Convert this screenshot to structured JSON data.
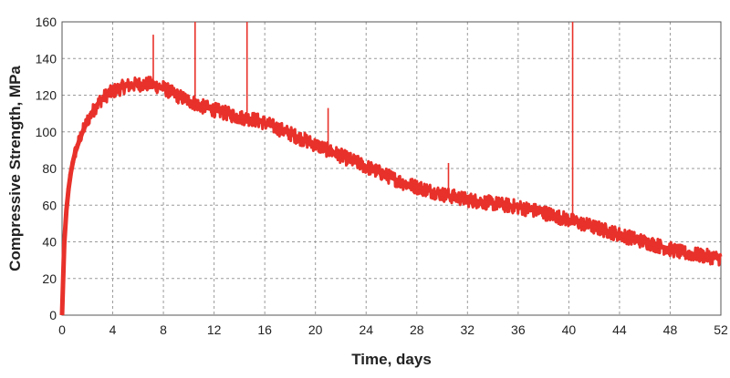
{
  "chart_data": {
    "type": "line",
    "title": "",
    "xlabel": "Time, days",
    "ylabel": "Compressive Strength, MPa",
    "xlim": [
      0,
      52
    ],
    "ylim": [
      0,
      160
    ],
    "x_ticks": [
      0,
      4,
      8,
      12,
      16,
      20,
      24,
      28,
      32,
      36,
      40,
      44,
      48,
      52
    ],
    "y_ticks": [
      0,
      20,
      40,
      60,
      80,
      100,
      120,
      140,
      160
    ],
    "grid": true,
    "grid_style": "dashed",
    "legend": "none",
    "series": [
      {
        "color": "#e8312a",
        "x": [
          0,
          0.2,
          0.4,
          0.6,
          0.8,
          1,
          1.5,
          2,
          2.5,
          3,
          3.5,
          4,
          5,
          6,
          7,
          8,
          9,
          10,
          11,
          12,
          13,
          14,
          15,
          16,
          17,
          18,
          19,
          20,
          21,
          22,
          23,
          24,
          25,
          26,
          27,
          28,
          29,
          30,
          31,
          32,
          33,
          34,
          35,
          36,
          37,
          38,
          39,
          40,
          41,
          42,
          43,
          44,
          45,
          46,
          47,
          48,
          49,
          50,
          51,
          52
        ],
        "y": [
          0,
          45,
          62,
          74,
          82,
          88,
          98,
          106,
          112,
          117,
          120,
          122,
          125,
          126,
          126,
          124,
          120,
          117,
          114,
          112,
          110,
          108,
          107,
          105,
          102,
          99,
          96,
          93,
          90,
          87,
          84,
          81,
          78,
          75,
          72,
          70,
          68,
          66,
          64.5,
          63,
          62,
          61,
          60,
          59,
          57.5,
          56,
          54,
          52,
          50,
          48,
          46,
          44,
          42,
          40,
          38,
          36,
          34,
          33,
          32,
          31
        ],
        "noise_amplitude": 4,
        "spikes": [
          {
            "x": 7.2,
            "y": 153
          },
          {
            "x": 10.5,
            "y": 160
          },
          {
            "x": 14.6,
            "y": 160
          },
          {
            "x": 21,
            "y": 113
          },
          {
            "x": 30.5,
            "y": 83
          },
          {
            "x": 40.3,
            "y": 160
          }
        ]
      }
    ]
  }
}
